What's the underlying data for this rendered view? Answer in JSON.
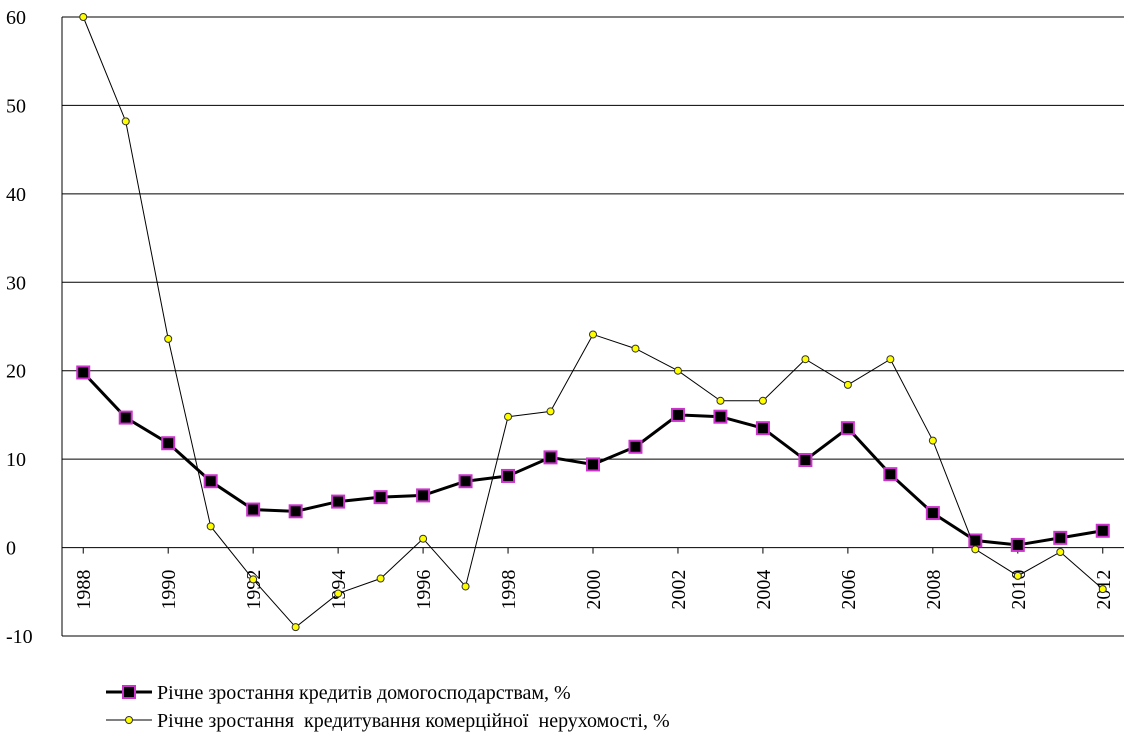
{
  "chart_data": {
    "type": "line",
    "x": [
      1988,
      1989,
      1990,
      1991,
      1992,
      1993,
      1994,
      1995,
      1996,
      1997,
      1998,
      1999,
      2000,
      2001,
      2002,
      2003,
      2004,
      2005,
      2006,
      2007,
      2008,
      2009,
      2010,
      2011,
      2012
    ],
    "xlim": [
      1987.5,
      2012.5
    ],
    "xticks": [
      1988,
      1990,
      1992,
      1994,
      1996,
      1998,
      2000,
      2002,
      2004,
      2006,
      2008,
      2010,
      2012
    ],
    "ylim": [
      -10,
      60
    ],
    "yticks": [
      -10,
      0,
      10,
      20,
      30,
      40,
      50,
      60
    ],
    "grid": true,
    "legend": "bottom",
    "series": [
      {
        "name": "Річне зростання кредитів домогосподарствам, %",
        "color": "#000000",
        "values": [
          19.8,
          14.7,
          11.8,
          7.5,
          4.3,
          4.1,
          5.2,
          5.7,
          5.9,
          7.5,
          8.1,
          10.2,
          9.4,
          11.4,
          15.0,
          14.8,
          13.5,
          9.9,
          13.5,
          8.3,
          3.9,
          0.8,
          0.3,
          1.1,
          1.9
        ]
      },
      {
        "name": "Річне зростання  кредитування комерційної  нерухомості, %",
        "color": "#ffff00",
        "values": [
          60,
          48.2,
          23.6,
          2.4,
          -3.6,
          -9.0,
          -5.2,
          -3.5,
          1.0,
          -4.4,
          14.8,
          15.4,
          24.1,
          22.5,
          20.0,
          16.6,
          16.6,
          21.3,
          18.4,
          21.3,
          12.1,
          -0.2,
          -3.2,
          -0.5,
          -4.7
        ]
      }
    ]
  }
}
